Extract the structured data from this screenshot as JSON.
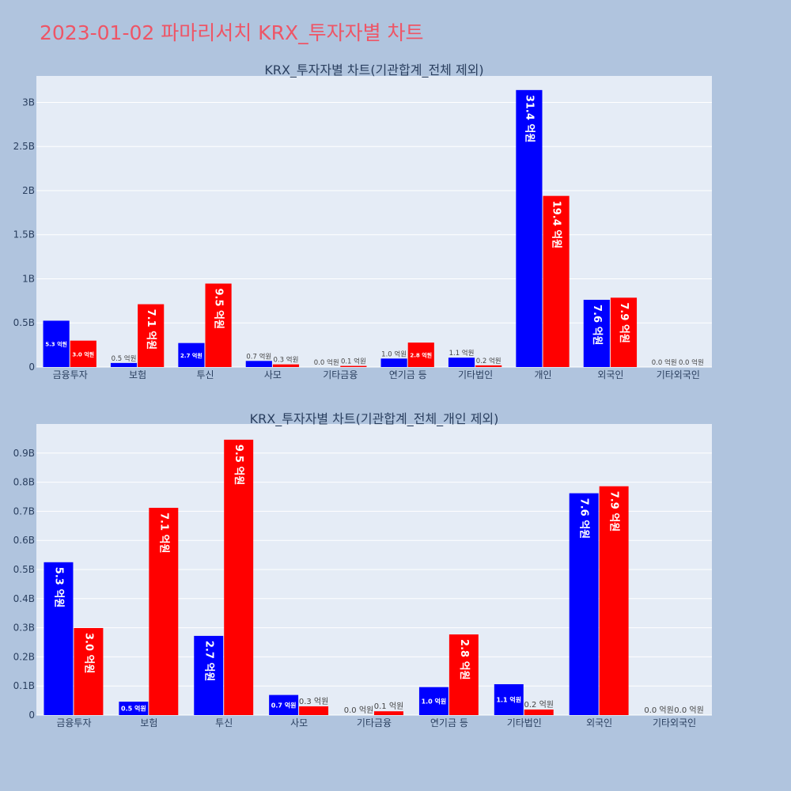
{
  "page": {
    "title": "2023-01-02 파마리서치 KRX_투자자별 차트"
  },
  "chart_data": [
    {
      "type": "bar",
      "title": "KRX_투자자별 차트(기관합계_전체 제외)",
      "categories": [
        "금융투자",
        "보험",
        "투신",
        "사모",
        "기타금융",
        "연기금 등",
        "기타법인",
        "개인",
        "외국인",
        "기타외국인"
      ],
      "series": [
        {
          "color": "#0000ff",
          "values": [
            525000000,
            46000000,
            272000000,
            69000000,
            0,
            96000000,
            106000000,
            3140000000,
            762000000,
            0
          ],
          "labels": [
            "5.3 억원",
            "0.5 억원",
            "2.7 억원",
            "0.7 억원",
            "0.0 억원",
            "1.0 억원",
            "1.1 억원",
            "31.4 억원",
            "7.6 억원",
            "0.0 억원"
          ]
        },
        {
          "color": "#ff0000",
          "values": [
            299000000,
            712000000,
            946000000,
            30000000,
            13000000,
            277000000,
            19000000,
            1940000000,
            786000000,
            0
          ],
          "labels": [
            "3.0 억원",
            "7.1 억원",
            "9.5 억원",
            "0.3 억원",
            "0.1 억원",
            "2.8 억원",
            "0.2 억원",
            "19.4 억원",
            "7.9 억원",
            "0.0 억원"
          ]
        }
      ],
      "ylim": [
        0,
        3300000000
      ],
      "yticks": [
        0,
        500000000,
        1000000000,
        1500000000,
        2000000000,
        2500000000,
        3000000000
      ],
      "ytick_labels": [
        "0",
        "0.5B",
        "1B",
        "1.5B",
        "2B",
        "2.5B",
        "3B"
      ],
      "grid": true
    },
    {
      "type": "bar",
      "title": "KRX_투자자별 차트(기관합계_전체_개인 제외)",
      "categories": [
        "금융투자",
        "보험",
        "투신",
        "사모",
        "기타금융",
        "연기금 등",
        "기타법인",
        "외국인",
        "기타외국인"
      ],
      "series": [
        {
          "color": "#0000ff",
          "values": [
            525000000,
            46000000,
            272000000,
            69000000,
            0,
            96000000,
            106000000,
            762000000,
            0
          ],
          "labels": [
            "5.3 억원",
            "0.5 억원",
            "2.7 억원",
            "0.7 억원",
            "0.0 억원",
            "1.0 억원",
            "1.1 억원",
            "7.6 억원",
            "0.0 억원"
          ]
        },
        {
          "color": "#ff0000",
          "values": [
            299000000,
            712000000,
            946000000,
            30000000,
            13000000,
            277000000,
            19000000,
            786000000,
            0
          ],
          "labels": [
            "3.0 억원",
            "7.1 억원",
            "9.5 억원",
            "0.3 억원",
            "0.1 억원",
            "2.8 억원",
            "0.2 억원",
            "7.9 억원",
            "0.0 억원"
          ]
        }
      ],
      "ylim": [
        0,
        1000000000
      ],
      "yticks": [
        0,
        100000000,
        200000000,
        300000000,
        400000000,
        500000000,
        600000000,
        700000000,
        800000000,
        900000000
      ],
      "ytick_labels": [
        "0",
        "0.1B",
        "0.2B",
        "0.3B",
        "0.4B",
        "0.5B",
        "0.6B",
        "0.7B",
        "0.8B",
        "0.9B"
      ],
      "grid": true
    }
  ]
}
